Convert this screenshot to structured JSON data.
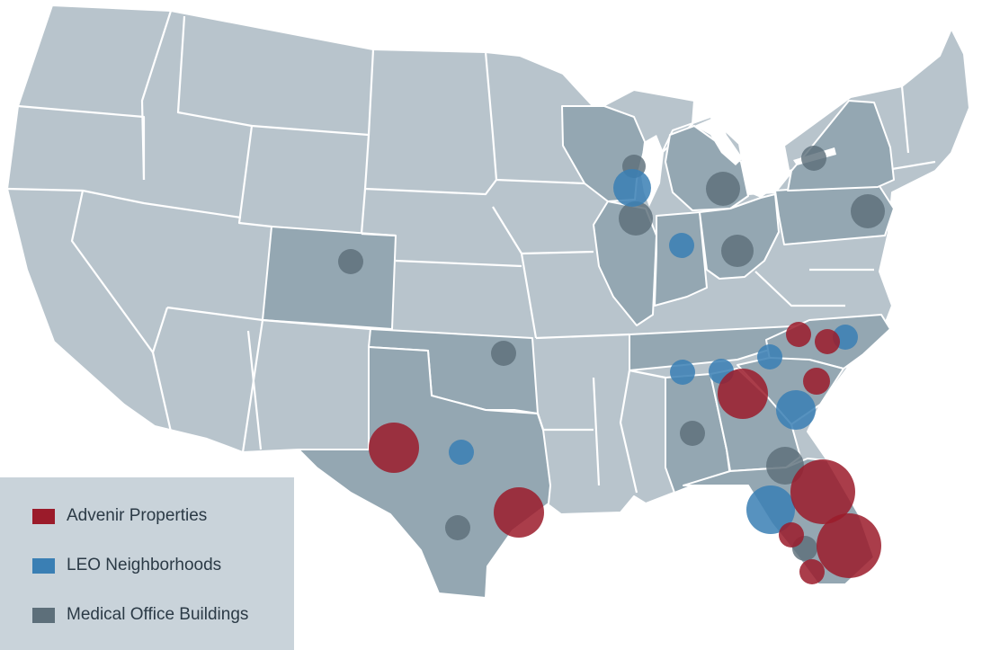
{
  "colors": {
    "state_fill": "#b8c4cc",
    "highlight_fill": "#94a7b2",
    "border": "#ffffff",
    "legend_bg": "#c9d3da"
  },
  "legend": {
    "items": [
      {
        "key": "advenir",
        "label": "Advenir Properties",
        "color": "#9b1b2a"
      },
      {
        "key": "leo",
        "label": "LEO Neighborhoods",
        "color": "#3a7fb4"
      },
      {
        "key": "medical",
        "label": "Medical Office Buildings",
        "color": "#5d6f7a"
      }
    ]
  },
  "highlighted_states": [
    "Wisconsin",
    "Michigan",
    "Illinois",
    "Indiana",
    "Ohio",
    "Pennsylvania",
    "New York",
    "Colorado",
    "Texas",
    "Oklahoma",
    "Alabama",
    "Georgia",
    "Florida",
    "North Carolina",
    "South Carolina",
    "Tennessee"
  ]
}
